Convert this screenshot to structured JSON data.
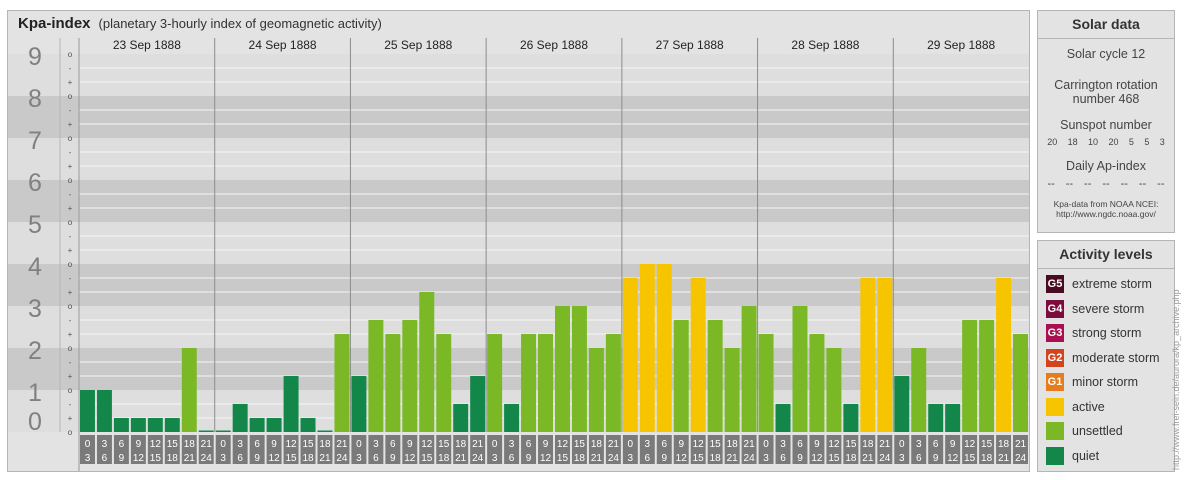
{
  "header": {
    "title": "Kpa-index",
    "subtitle": "(planetary 3-hourly index of geomagnetic activity)"
  },
  "colors": {
    "quiet": "#13874a",
    "unsettled": "#7ab826",
    "active": "#f7c500",
    "minor_storm": "#e57d1f",
    "moderate_storm": "#d1441c",
    "strong_storm": "#a8104f",
    "severe_storm": "#7b0c3c",
    "extreme_storm": "#4a0b22"
  },
  "chart_data": {
    "type": "bar",
    "title": "Kpa-index",
    "ylim": [
      0,
      9
    ],
    "y_ticks": [
      "0",
      "1",
      "2",
      "3",
      "4",
      "5",
      "6",
      "7",
      "8",
      "9"
    ],
    "sub_ticks": [
      "o",
      "+",
      "-"
    ],
    "days": [
      "23 Sep 1888",
      "24 Sep 1888",
      "25 Sep 1888",
      "26 Sep 1888",
      "27 Sep 1888",
      "28 Sep 1888",
      "29 Sep 1888"
    ],
    "interval_start": [
      "0",
      "3",
      "6",
      "9",
      "12",
      "15",
      "18",
      "21"
    ],
    "interval_end": [
      "3",
      "6",
      "9",
      "12",
      "15",
      "18",
      "21",
      "24"
    ],
    "values": [
      [
        1.0,
        1.0,
        0.333,
        0.333,
        0.333,
        0.333,
        2.0,
        0.0
      ],
      [
        0.0,
        0.667,
        0.333,
        0.333,
        1.333,
        0.333,
        0.0,
        2.333
      ],
      [
        1.333,
        2.667,
        2.333,
        2.667,
        3.333,
        2.333,
        0.667,
        1.333
      ],
      [
        2.333,
        0.667,
        2.333,
        2.333,
        3.0,
        3.0,
        2.0,
        2.333
      ],
      [
        3.667,
        4.0,
        4.0,
        2.667,
        3.667,
        2.667,
        2.0,
        3.0
      ],
      [
        2.333,
        0.667,
        3.0,
        2.333,
        2.0,
        0.667,
        3.667,
        3.667
      ],
      [
        1.333,
        2.0,
        0.667,
        0.667,
        2.667,
        2.667,
        3.667,
        2.333
      ]
    ]
  },
  "solar": {
    "title": "Solar data",
    "cycle": "Solar cycle 12",
    "carrington_1": "Carrington rotation",
    "carrington_2": "number 468",
    "sunspot_label": "Sunspot number",
    "sunspots": [
      "20",
      "18",
      "10",
      "20",
      "5",
      "5",
      "3"
    ],
    "ap_label": "Daily Ap-index",
    "ap_values": [
      "--",
      "--",
      "--",
      "--",
      "--",
      "--",
      "--"
    ],
    "source_1": "Kpa-data from NOAA NCEI:",
    "source_2": "http://www.ngdc.noaa.gov/"
  },
  "levels": {
    "title": "Activity levels",
    "items": [
      {
        "code": "G5",
        "label": "extreme storm",
        "color": "#4a0b22"
      },
      {
        "code": "G4",
        "label": "severe storm",
        "color": "#7b0c3c"
      },
      {
        "code": "G3",
        "label": "strong storm",
        "color": "#a8104f"
      },
      {
        "code": "G2",
        "label": "moderate storm",
        "color": "#d1441c"
      },
      {
        "code": "G1",
        "label": "minor storm",
        "color": "#e57d1f"
      },
      {
        "code": "",
        "label": "active",
        "color": "#f7c500"
      },
      {
        "code": "",
        "label": "unsettled",
        "color": "#7ab826"
      },
      {
        "code": "",
        "label": "quiet",
        "color": "#13874a"
      }
    ]
  },
  "credit": "http://www.frei-sein.de/aurora/kp_archive.php"
}
